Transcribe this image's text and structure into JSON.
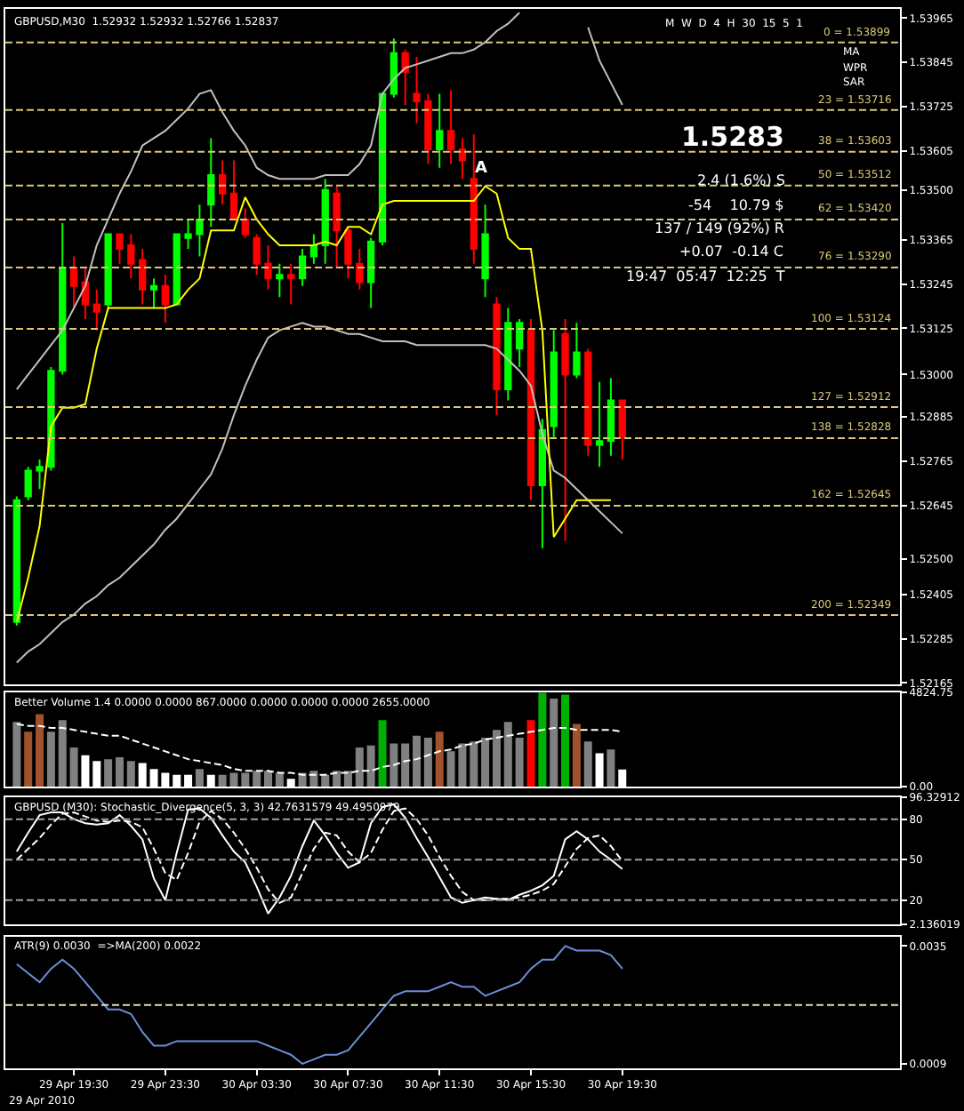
{
  "chart_data": [
    {
      "type": "candlestick",
      "title": "GBPUSD,M30  1.52932 1.52932 1.52766 1.52837",
      "ohlc": [
        [
          1.5233,
          1.5267,
          1.5232,
          1.5266
        ],
        [
          1.5267,
          1.5275,
          1.5266,
          1.5274
        ],
        [
          1.5274,
          1.5277,
          1.5269,
          1.5275
        ],
        [
          1.5275,
          1.5302,
          1.5274,
          1.5301
        ],
        [
          1.5301,
          1.5341,
          1.53,
          1.5329
        ],
        [
          1.5329,
          1.5332,
          1.5318,
          1.5324
        ],
        [
          1.5325,
          1.5329,
          1.5315,
          1.5319
        ],
        [
          1.5319,
          1.5323,
          1.5312,
          1.5317
        ],
        [
          1.5319,
          1.5338,
          1.5318,
          1.5338
        ],
        [
          1.5338,
          1.5338,
          1.533,
          1.5334
        ],
        [
          1.5335,
          1.5338,
          1.5326,
          1.533
        ],
        [
          1.5331,
          1.5334,
          1.5319,
          1.5323
        ],
        [
          1.5323,
          1.5326,
          1.5318,
          1.5324
        ],
        [
          1.5324,
          1.5327,
          1.5314,
          1.5319
        ],
        [
          1.5319,
          1.5338,
          1.5319,
          1.5338
        ],
        [
          1.5337,
          1.5342,
          1.5334,
          1.5338
        ],
        [
          1.5338,
          1.5346,
          1.5332,
          1.5342
        ],
        [
          1.5346,
          1.5364,
          1.534,
          1.5354
        ],
        [
          1.5354,
          1.5358,
          1.5346,
          1.5349
        ],
        [
          1.5349,
          1.5358,
          1.5342,
          1.5342
        ],
        [
          1.5342,
          1.5345,
          1.5337,
          1.5338
        ],
        [
          1.5337,
          1.5338,
          1.5327,
          1.533
        ],
        [
          1.533,
          1.5335,
          1.5323,
          1.5326
        ],
        [
          1.5326,
          1.533,
          1.5321,
          1.5327
        ],
        [
          1.5327,
          1.533,
          1.5319,
          1.5326
        ],
        [
          1.5326,
          1.5334,
          1.5324,
          1.5332
        ],
        [
          1.5332,
          1.5338,
          1.533,
          1.5335
        ],
        [
          1.5335,
          1.5353,
          1.533,
          1.535
        ],
        [
          1.5349,
          1.5351,
          1.5329,
          1.5339
        ],
        [
          1.5339,
          1.534,
          1.5326,
          1.533
        ],
        [
          1.533,
          1.5334,
          1.5323,
          1.5325
        ],
        [
          1.5325,
          1.5337,
          1.5318,
          1.5336
        ],
        [
          1.5336,
          1.5376,
          1.5335,
          1.5376
        ],
        [
          1.5376,
          1.5391,
          1.5375,
          1.5387
        ],
        [
          1.5387,
          1.5388,
          1.5373,
          1.5382
        ],
        [
          1.5376,
          1.5386,
          1.5368,
          1.5374
        ],
        [
          1.5374,
          1.5376,
          1.5357,
          1.5361
        ],
        [
          1.5361,
          1.5376,
          1.5356,
          1.5366
        ],
        [
          1.5366,
          1.5377,
          1.5357,
          1.5361
        ],
        [
          1.5361,
          1.5364,
          1.5353,
          1.5358
        ],
        [
          1.5353,
          1.5365,
          1.533,
          1.5334
        ],
        [
          1.5326,
          1.5346,
          1.5321,
          1.5338
        ],
        [
          1.5319,
          1.5321,
          1.5289,
          1.5296
        ],
        [
          1.5296,
          1.5318,
          1.5293,
          1.5314
        ],
        [
          1.5307,
          1.5315,
          1.5302,
          1.5314
        ],
        [
          1.5312,
          1.5315,
          1.5266,
          1.527
        ],
        [
          1.527,
          1.5288,
          1.5253,
          1.5285
        ],
        [
          1.5286,
          1.5312,
          1.5283,
          1.5306
        ],
        [
          1.5311,
          1.5315,
          1.5255,
          1.53
        ],
        [
          1.53,
          1.5314,
          1.5299,
          1.5306
        ],
        [
          1.5306,
          1.5307,
          1.5278,
          1.5281
        ],
        [
          1.5281,
          1.5298,
          1.5275,
          1.5282
        ],
        [
          1.5282,
          1.5299,
          1.5278,
          1.5293
        ],
        [
          1.5293,
          1.5293,
          1.5277,
          1.5283
        ]
      ],
      "colors": [
        "#00ff00",
        "#00ff00",
        "#00ff00",
        "#00ff00",
        "#00ff00",
        "#ff0000",
        "#ff0000",
        "#ff0000",
        "#00ff00",
        "#ff0000",
        "#ff0000",
        "#ff0000",
        "#00ff00",
        "#ff0000",
        "#00ff00",
        "#00ff00",
        "#00ff00",
        "#00ff00",
        "#ff0000",
        "#ff0000",
        "#ff0000",
        "#ff0000",
        "#ff0000",
        "#00ff00",
        "#ff0000",
        "#00ff00",
        "#00ff00",
        "#00ff00",
        "#ff0000",
        "#ff0000",
        "#ff0000",
        "#00ff00",
        "#00ff00",
        "#00ff00",
        "#ff0000",
        "#ff0000",
        "#ff0000",
        "#00ff00",
        "#ff0000",
        "#ff0000",
        "#ff0000",
        "#00ff00",
        "#ff0000",
        "#00ff00",
        "#00ff00",
        "#ff0000",
        "#00ff00",
        "#00ff00",
        "#ff0000",
        "#00ff00",
        "#ff0000",
        "#00ff00",
        "#00ff00",
        "#ff0000"
      ],
      "series": [
        {
          "type": "line",
          "color": "#c0c0c0",
          "values": [
            1.5296,
            1.53,
            1.5304,
            1.5308,
            1.5312,
            1.5318,
            1.5324,
            1.5335,
            1.5342,
            1.5349,
            1.5355,
            1.5362,
            1.5364,
            1.5366,
            1.5369,
            1.5372,
            1.5376,
            1.5377,
            1.5371,
            1.5366,
            1.5362,
            1.5356,
            1.5354,
            1.5353,
            1.5353,
            1.5353,
            1.5353,
            1.5354,
            1.5354,
            1.5354,
            1.5357,
            1.5362,
            1.5376,
            1.538,
            1.5383,
            1.5384,
            1.5385,
            1.5386,
            1.5387,
            1.5387,
            1.5388,
            1.539,
            1.5393,
            1.5395,
            1.5398,
            null,
            null,
            null,
            null,
            null,
            1.5394,
            1.5385,
            1.5379,
            1.5373
          ]
        },
        {
          "type": "line",
          "color": "#c0c0c0",
          "values": [
            1.5222,
            1.5225,
            1.5227,
            1.523,
            1.5233,
            1.5235,
            1.5238,
            1.524,
            1.5243,
            1.5245,
            1.5248,
            1.5251,
            1.5254,
            1.5258,
            1.5261,
            1.5265,
            1.5269,
            1.5273,
            1.528,
            1.5289,
            1.5297,
            1.5304,
            1.531,
            1.5312,
            1.5313,
            1.5314,
            1.5313,
            1.5313,
            1.5312,
            1.5311,
            1.5311,
            1.531,
            1.5309,
            1.5309,
            1.5309,
            1.5308,
            1.5308,
            1.5308,
            1.5308,
            1.5308,
            1.5308,
            1.5308,
            1.5307,
            1.5304,
            1.5301,
            1.5297,
            1.5284,
            1.5274,
            1.5272,
            1.5269,
            1.5266,
            1.5263,
            1.526,
            1.5257
          ]
        },
        {
          "type": "line",
          "color": "#ffff00",
          "values": [
            1.5233,
            1.5245,
            1.5259,
            1.5286,
            1.5291,
            1.5291,
            1.5292,
            1.5307,
            1.5318,
            1.5318,
            1.5318,
            1.5318,
            1.5318,
            1.5318,
            1.5319,
            1.5323,
            1.5326,
            1.5339,
            1.5339,
            1.5339,
            1.5348,
            1.5342,
            1.5338,
            1.5335,
            1.5335,
            1.5335,
            1.5335,
            1.5336,
            1.5335,
            1.534,
            1.534,
            1.5338,
            1.5346,
            1.5347,
            1.5347,
            1.5347,
            1.5347,
            1.5347,
            1.5347,
            1.5347,
            1.5347,
            1.5351,
            1.5349,
            1.5337,
            1.5334,
            1.5334,
            1.5312,
            1.5256,
            1.5261,
            1.5266,
            1.5266,
            1.5266,
            1.5266,
            null
          ]
        }
      ],
      "ylim": [
        1.5216,
        1.5399
      ],
      "yticks": [
        1.53965,
        1.53845,
        1.53725,
        1.53605,
        {
          "value": 1.535,
          "label": "1.53500"
        },
        1.53365,
        1.53245,
        1.53125,
        {
          "value": 1.53,
          "label": "1.53000"
        },
        1.52885,
        1.52765,
        1.52645,
        {
          "value": 1.525,
          "label": "1.52500"
        },
        1.52405,
        1.52285,
        1.52165
      ],
      "ref_lines": [
        {
          "axis": "y",
          "value": 1.53899,
          "label": "0 = 1.53899",
          "color": "#d8c878",
          "line_style": "dashed"
        },
        {
          "axis": "y",
          "value": 1.53716,
          "label": "23 = 1.53716",
          "color": "#d8c878",
          "line_style": "dashed"
        },
        {
          "axis": "y",
          "value": 1.53603,
          "label": "38 = 1.53603",
          "color": "#d8c878",
          "line_style": "dashed"
        },
        {
          "axis": "y",
          "value": 1.53512,
          "label": "50 = 1.53512",
          "color": "#d8c878",
          "line_style": "dashed"
        },
        {
          "axis": "y",
          "value": 1.5342,
          "label": "62 = 1.53420",
          "color": "#d8c878",
          "line_style": "dashed"
        },
        {
          "axis": "y",
          "value": 1.5329,
          "label": "76 = 1.53290",
          "color": "#d8c878",
          "line_style": "dashed"
        },
        {
          "axis": "y",
          "value": 1.53124,
          "label": "100 = 1.53124",
          "color": "#d8c878",
          "line_style": "dashed"
        },
        {
          "axis": "y",
          "value": 1.52912,
          "label": "127 = 1.52912",
          "color": "#d8c878",
          "line_style": "dashed"
        },
        {
          "axis": "y",
          "value": 1.52828,
          "label": "138 = 1.52828",
          "color": "#d8c878",
          "line_style": "dashed"
        },
        {
          "axis": "y",
          "value": 1.52645,
          "label": "162 = 1.52645",
          "color": "#d8c878",
          "line_style": "dashed"
        },
        {
          "axis": "y",
          "value": 1.52349,
          "label": "200 = 1.52349",
          "color": "#d8c878",
          "line_style": "dashed"
        }
      ],
      "annotations": [
        "A",
        "1.5283",
        "2.4 (1.6%) S",
        "-54    10.79 $",
        "137 / 149 (92%) R",
        "+0.07  -0.14 C",
        "19:47  05:47  12:25  T",
        "M  W  D  4  H  30  15  5  1",
        "MA",
        "WPR",
        "SAR"
      ],
      "grid": false,
      "tick_labels": "y"
    },
    {
      "type": "bar",
      "title": "Better Volume 1.4 0.0000 0.0000 867.0000 0.0000 0.0000 0.0000 2655.0000",
      "series": [
        {
          "type": "bar",
          "values": [
            3300,
            2800,
            3700,
            2800,
            3400,
            2000,
            1600,
            1300,
            1400,
            1500,
            1300,
            1200,
            900,
            700,
            600,
            600,
            900,
            600,
            600,
            700,
            700,
            800,
            800,
            700,
            400,
            700,
            800,
            600,
            800,
            800,
            2000,
            2100,
            3400,
            2200,
            2200,
            2600,
            2500,
            2800,
            1800,
            2200,
            2300,
            2500,
            2900,
            3300,
            2500,
            3400,
            4800,
            4500,
            4700,
            3200,
            2300,
            1700,
            1900,
            867
          ],
          "colors": [
            "#808080",
            "#a0522d",
            "#a0522d",
            "#808080",
            "#808080",
            "#808080",
            "#ffffff",
            "#ffffff",
            "#808080",
            "#808080",
            "#808080",
            "#ffffff",
            "#ffffff",
            "#ffffff",
            "#ffffff",
            "#ffffff",
            "#808080",
            "#ffffff",
            "#808080",
            "#808080",
            "#808080",
            "#808080",
            "#808080",
            "#808080",
            "#ffffff",
            "#808080",
            "#808080",
            "#808080",
            "#808080",
            "#808080",
            "#808080",
            "#808080",
            "#00b000",
            "#808080",
            "#808080",
            "#808080",
            "#808080",
            "#a0522d",
            "#808080",
            "#808080",
            "#808080",
            "#808080",
            "#808080",
            "#808080",
            "#808080",
            "#ff0000",
            "#00b000",
            "#808080",
            "#00b000",
            "#a0522d",
            "#808080",
            "#ffffff",
            "#808080",
            "#ffffff"
          ]
        },
        {
          "type": "line",
          "color": "#ffffff",
          "line_style": "dashed",
          "values": [
            3200,
            3100,
            3100,
            3000,
            3000,
            2900,
            2800,
            2700,
            2600,
            2600,
            2400,
            2200,
            2000,
            1800,
            1600,
            1400,
            1300,
            1200,
            1100,
            900,
            800,
            800,
            800,
            700,
            700,
            600,
            600,
            600,
            700,
            700,
            800,
            800,
            1000,
            1100,
            1300,
            1400,
            1600,
            1800,
            1900,
            2100,
            2200,
            2400,
            2500,
            2600,
            2700,
            2800,
            2900,
            3000,
            3000,
            2900,
            2900,
            2900,
            2900,
            2800
          ]
        }
      ],
      "ylim": [
        0,
        4824.75
      ],
      "yticks": [
        4824.75,
        {
          "value": 0,
          "label": "0.00"
        }
      ],
      "grid": false,
      "tick_labels": "y"
    },
    {
      "type": "line",
      "title": "GBPUSD (M30): Stochastic_Divergence(5, 3, 3) 42.7631579 49.4950979",
      "series": [
        {
          "color": "#ffffff",
          "line_style": "solid",
          "values": [
            56,
            70,
            83,
            85,
            85,
            80,
            77,
            76,
            77,
            83,
            75,
            65,
            36,
            20,
            55,
            87,
            88,
            81,
            68,
            56,
            48,
            30,
            10,
            22,
            38,
            60,
            79,
            68,
            55,
            44,
            48,
            77,
            89,
            91,
            81,
            66,
            52,
            37,
            22,
            18,
            20,
            22,
            21,
            20,
            24,
            27,
            31,
            38,
            65,
            71,
            65,
            56,
            50,
            43
          ]
        },
        {
          "color": "#ffffff",
          "line_style": "dashed",
          "values": [
            50,
            58,
            66,
            76,
            84,
            85,
            82,
            79,
            78,
            79,
            78,
            74,
            58,
            40,
            35,
            55,
            78,
            86,
            80,
            70,
            58,
            44,
            28,
            18,
            22,
            40,
            58,
            70,
            68,
            56,
            48,
            55,
            72,
            86,
            88,
            80,
            68,
            52,
            38,
            26,
            20,
            20,
            21,
            21,
            22,
            24,
            27,
            32,
            45,
            58,
            66,
            68,
            60,
            49
          ]
        }
      ],
      "ylim": [
        2.136019,
        96.32912
      ],
      "yticks": [
        96.32912,
        80,
        50,
        20,
        2.136019
      ],
      "ref_lines": [
        {
          "axis": "y",
          "value": 80,
          "color": "#a0a0a0",
          "line_style": "dashed"
        },
        {
          "axis": "y",
          "value": 50,
          "color": "#a0a0a0",
          "line_style": "dashed"
        },
        {
          "axis": "y",
          "value": 20,
          "color": "#a0a0a0",
          "line_style": "dashed"
        }
      ],
      "grid": false,
      "tick_labels": "y"
    },
    {
      "type": "line",
      "title": "ATR(9) 0.0030  =>MA(200) 0.0022",
      "categories": [
        null,
        null,
        null,
        null,
        null,
        "29 Apr 19:30",
        null,
        null,
        null,
        null,
        null,
        null,
        null,
        "29 Apr 23:30",
        null,
        null,
        null,
        null,
        null,
        null,
        null,
        "30 Apr 03:30",
        null,
        null,
        null,
        null,
        null,
        null,
        null,
        "30 Apr 07:30",
        null,
        null,
        null,
        null,
        null,
        null,
        null,
        "30 Apr 11:30",
        null,
        null,
        null,
        null,
        null,
        null,
        null,
        "30 Apr 15:30",
        null,
        null,
        null,
        null,
        null,
        null,
        null,
        "30 Apr 19:30"
      ],
      "series": [
        {
          "color": "#6b8fd6",
          "values": [
            0.0031,
            0.0029,
            0.0027,
            0.003,
            0.0032,
            0.003,
            0.0027,
            0.0024,
            0.0021,
            0.0021,
            0.002,
            0.0016,
            0.0013,
            0.0013,
            0.0014,
            0.0014,
            0.0014,
            0.0014,
            0.0014,
            0.0014,
            0.0014,
            0.0014,
            0.0013,
            0.0012,
            0.0011,
            0.0009,
            0.001,
            0.0011,
            0.0011,
            0.0012,
            0.0015,
            0.0018,
            0.0021,
            0.0024,
            0.0025,
            0.0025,
            0.0025,
            0.0026,
            0.0027,
            0.0026,
            0.0026,
            0.0024,
            0.0025,
            0.0026,
            0.0027,
            0.003,
            0.0032,
            0.0032,
            0.0035,
            0.0034,
            0.0034,
            0.0034,
            0.0033,
            0.003
          ]
        }
      ],
      "ylim": [
        0.0008,
        0.0037
      ],
      "yticks": [
        0.0035,
        0.0009
      ],
      "ref_lines": [
        {
          "axis": "y",
          "value": 0.0022,
          "color": "#e0e0b0",
          "line_style": "dashed"
        }
      ],
      "annotations": [
        "29 Apr 2010"
      ],
      "grid": false
    }
  ]
}
